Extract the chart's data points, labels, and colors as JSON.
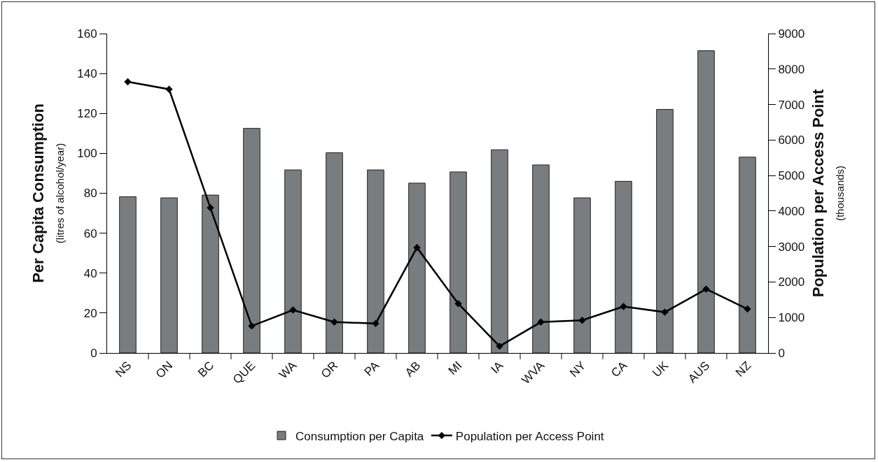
{
  "chart_data": {
    "type": "bar",
    "ylabel": "Per Capita Consumption\n(litres of alcohol/year)",
    "y2label": "Population per Access Point\n(thousands)",
    "categories": [
      "NS",
      "ON",
      "BC",
      "QUE",
      "WA",
      "OR",
      "PA",
      "AB",
      "MI",
      "IA",
      "WVA",
      "NY",
      "CA",
      "UK",
      "AUS",
      "NZ"
    ],
    "series": [
      {
        "name": "Consumption per Capita",
        "color": "#7a7d80",
        "values": [
          78.3,
          77.7,
          79.1,
          112.5,
          91.7,
          100.3,
          91.7,
          85.1,
          90.7,
          101.8,
          94.2,
          77.7,
          86.0,
          122.0,
          151.4,
          98.1
        ]
      },
      {
        "name": "Population per Access Point",
        "type": "line",
        "axis": "y2",
        "color": "#000000",
        "marker": "diamond",
        "line_style": "solid",
        "values": [
          7640,
          7430,
          4090,
          760,
          1210,
          870,
          830,
          2970,
          1390,
          190,
          870,
          920,
          1310,
          1150,
          1800,
          1240
        ]
      }
    ],
    "ylim": [
      0,
      160
    ],
    "yticks": [
      0,
      20,
      40,
      60,
      80,
      100,
      120,
      140,
      160
    ],
    "y2lim": [
      0,
      9000
    ],
    "y2ticks": [
      0,
      1000,
      2000,
      3000,
      4000,
      5000,
      6000,
      7000,
      8000,
      9000
    ],
    "grid": false,
    "legend": "bottom"
  }
}
